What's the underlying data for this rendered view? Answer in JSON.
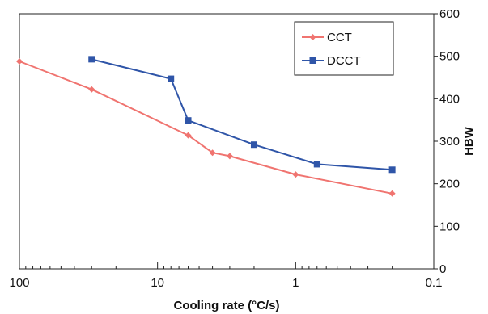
{
  "chart_data": {
    "type": "line",
    "x_scale": "log",
    "x_reversed": true,
    "xlim": [
      100,
      0.1
    ],
    "ylim": [
      0,
      600
    ],
    "xlabel": "Cooling rate (°C/s)",
    "ylabel": "HBW",
    "y_axis_side": "right",
    "x_ticks": [
      100,
      10,
      1,
      0.1
    ],
    "x_tick_labels": [
      "100",
      "10",
      "1",
      "0.1"
    ],
    "y_ticks": [
      0,
      100,
      200,
      300,
      400,
      500,
      600
    ],
    "y_tick_labels": [
      "0",
      "100",
      "200",
      "300",
      "400",
      "500",
      "600"
    ],
    "grid": false,
    "legend_position": "top-right",
    "series": [
      {
        "name": "CCT",
        "color": "#f07470",
        "marker": "diamond",
        "x": [
          100,
          30,
          6,
          4,
          3,
          1,
          0.2
        ],
        "y": [
          488,
          422,
          314,
          273,
          265,
          222,
          177
        ]
      },
      {
        "name": "DCCT",
        "color": "#2f55a8",
        "marker": "square",
        "x": [
          30,
          8,
          6,
          2,
          0.7,
          0.2
        ],
        "y": [
          493,
          447,
          349,
          292,
          246,
          233
        ]
      }
    ]
  }
}
